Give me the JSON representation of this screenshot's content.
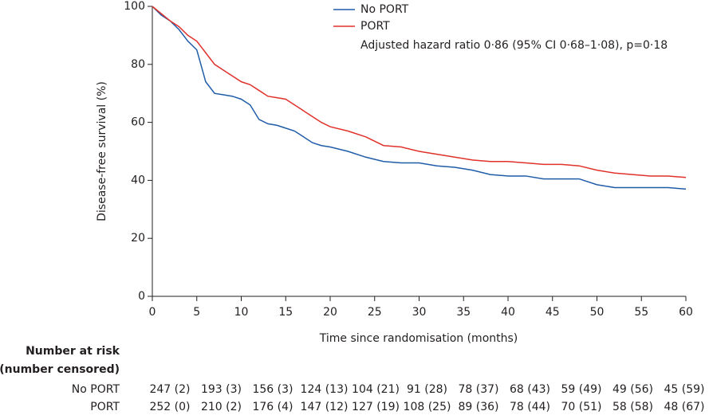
{
  "chart_data": {
    "type": "line",
    "y_label": "Disease-free survival (%)",
    "x_label": "Time  since randomisation (months)",
    "annotation": "Adjusted hazard ratio 0·86 (95% CI 0·68–1·08), p=0·18",
    "xlim": [
      0,
      60
    ],
    "ylim": [
      0,
      100
    ],
    "xticks": [
      0,
      5,
      10,
      15,
      20,
      25,
      30,
      35,
      40,
      45,
      50,
      55,
      60
    ],
    "yticks": [
      0,
      20,
      40,
      60,
      80,
      100
    ],
    "x": [
      0,
      1,
      2,
      3,
      4,
      5,
      6,
      7,
      8,
      9,
      10,
      11,
      12,
      13,
      14,
      15,
      16,
      17,
      18,
      19,
      20,
      22,
      24,
      26,
      28,
      30,
      32,
      34,
      36,
      38,
      40,
      42,
      44,
      46,
      48,
      50,
      52,
      54,
      56,
      58,
      60
    ],
    "series": [
      {
        "name": "No PORT",
        "color": "#1f5ca8",
        "values": [
          100,
          97,
          95,
          92,
          88,
          85,
          74,
          70,
          69.5,
          69,
          68,
          66,
          61,
          59.5,
          59,
          58,
          57,
          55,
          53,
          52,
          51.5,
          50,
          48,
          46.5,
          46,
          46,
          45,
          44.5,
          43.5,
          42,
          41.5,
          41.5,
          40.5,
          40.5,
          40.5,
          38.5,
          37.5,
          37.5,
          37.5,
          37.5,
          37
        ]
      },
      {
        "name": "PORT",
        "color": "#e0312a",
        "values": [
          100,
          97.5,
          95,
          93,
          90,
          88,
          84,
          80,
          78,
          76,
          74,
          73,
          71,
          69,
          68.5,
          68,
          66,
          64,
          62,
          60,
          58.5,
          57,
          55,
          52,
          51.5,
          50,
          49,
          48,
          47,
          46.5,
          46.5,
          46,
          45.5,
          45.5,
          45,
          43.5,
          42.5,
          42,
          41.5,
          41.5,
          41
        ]
      }
    ]
  },
  "risk_table": {
    "title": "Number at risk",
    "subtitle": "(number censored)",
    "rows": [
      {
        "name": "No PORT",
        "values": [
          "247 (2)",
          "193 (3)",
          "156 (3)",
          "124 (13)",
          "104 (21)",
          "91 (28)",
          "78 (37)",
          "68 (43)",
          "59 (49)",
          "49 (56)",
          "45 (59)"
        ]
      },
      {
        "name": "PORT",
        "values": [
          "252 (0)",
          "210 (2)",
          "176 (4)",
          "147 (12)",
          "127 (19)",
          "108 (25)",
          "89 (36)",
          "78 (44)",
          "70 (51)",
          "58 (58)",
          "48 (67)"
        ]
      }
    ]
  }
}
